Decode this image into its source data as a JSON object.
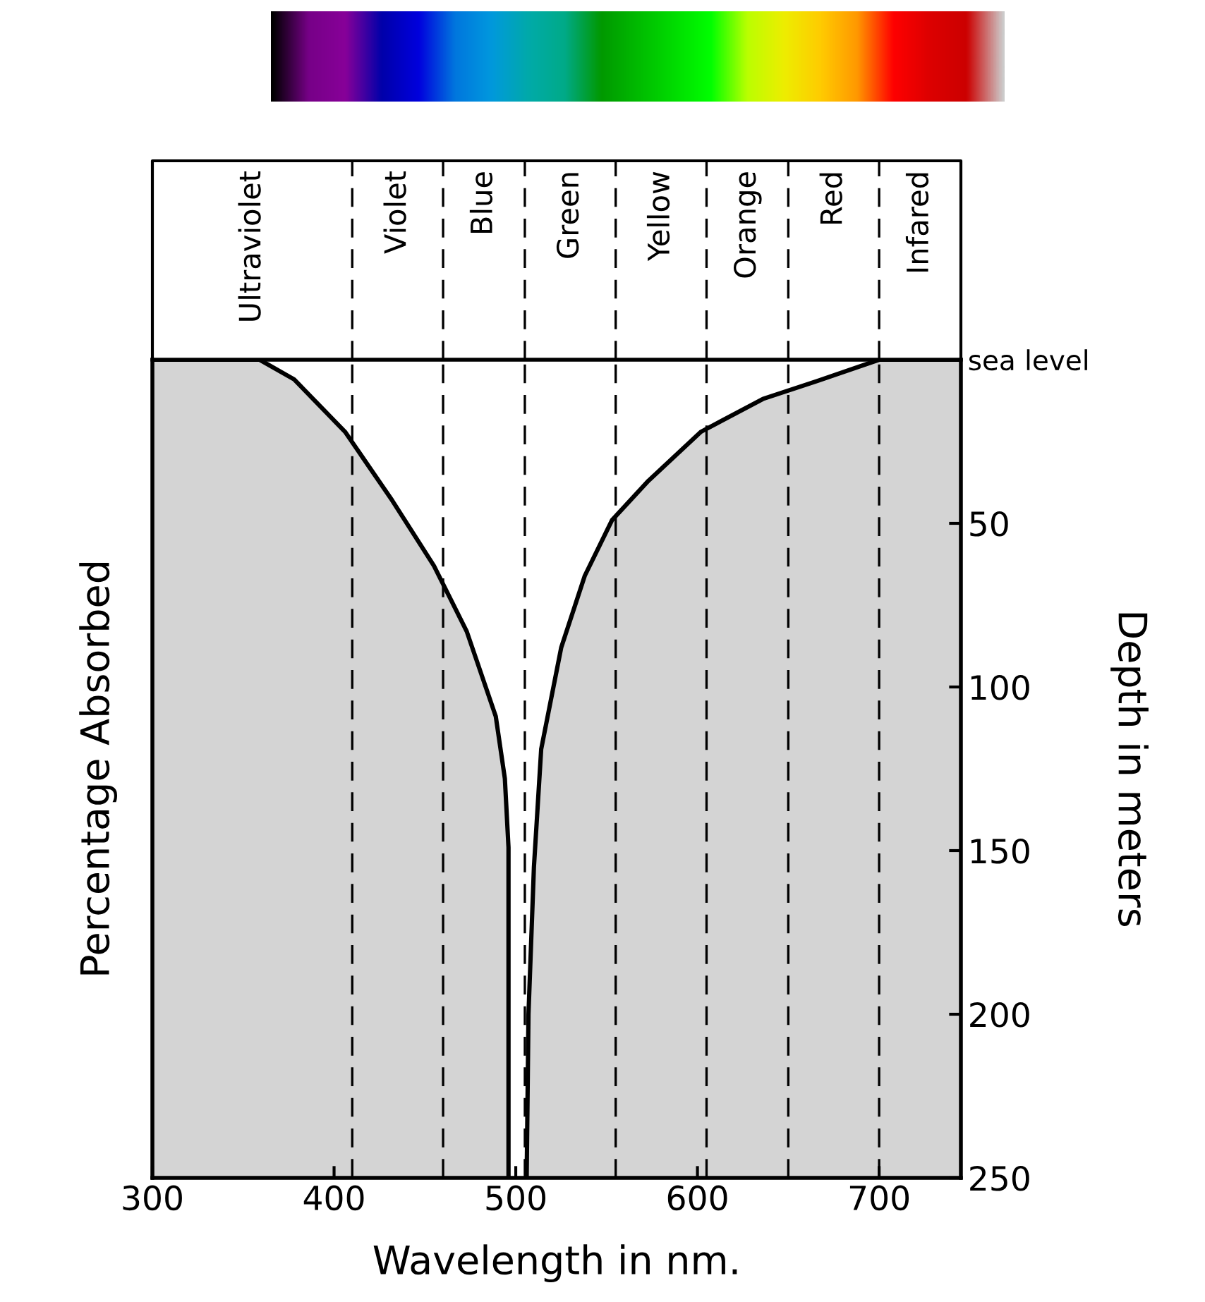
{
  "chart_data": {
    "type": "line",
    "xlabel": "Wavelength in nm.",
    "ylabel": "Percentage Absorbed",
    "y2label": "Depth in meters",
    "xlim": [
      300,
      745
    ],
    "xticks": [
      300,
      400,
      500,
      600,
      700
    ],
    "y2lim": [
      250,
      0
    ],
    "y2ticks": [
      {
        "value": 0,
        "label": "sea level"
      },
      50,
      100,
      150,
      200,
      250
    ],
    "series": [
      {
        "axis": "y2",
        "color": "#000000",
        "x": [
          300,
          359,
          378,
          406,
          432,
          455,
          473,
          489,
          494,
          496,
          496
        ],
        "values": [
          0,
          0,
          6,
          22,
          43,
          63,
          83,
          109,
          128,
          149,
          250
        ],
        "lower": [
          0,
          0,
          6,
          22,
          43,
          63,
          83,
          109,
          128,
          149,
          250
        ],
        "upper": [
          250,
          250,
          250,
          250,
          250,
          250,
          250,
          250,
          250,
          250,
          250
        ]
      },
      {
        "axis": "y2",
        "color": "#000000",
        "x": [
          506,
          507,
          510,
          514,
          525,
          538,
          553,
          573,
          602,
          636,
          666,
          700,
          745
        ],
        "values": [
          250,
          200,
          155,
          119,
          88,
          66,
          49,
          37,
          22,
          12,
          6.5,
          0,
          0
        ],
        "lower": [
          250,
          200,
          155,
          119,
          88,
          66,
          49,
          37,
          22,
          12,
          6.5,
          0,
          0
        ],
        "upper": [
          250,
          250,
          250,
          250,
          250,
          250,
          250,
          250,
          250,
          250,
          250,
          250,
          250
        ]
      }
    ],
    "ref_lines": [
      {
        "axis": "x",
        "value": 410,
        "line_style": "dashed"
      },
      {
        "axis": "x",
        "value": 460,
        "line_style": "dashed"
      },
      {
        "axis": "x",
        "value": 505,
        "line_style": "dashed"
      },
      {
        "axis": "x",
        "value": 555,
        "line_style": "dashed"
      },
      {
        "axis": "x",
        "value": 605,
        "line_style": "dashed"
      },
      {
        "axis": "x",
        "value": 650,
        "line_style": "dashed"
      },
      {
        "axis": "x",
        "value": 700,
        "line_style": "dashed"
      }
    ],
    "annotations": [
      "Ultraviolet",
      "Violet",
      "Blue",
      "Green",
      "Yellow",
      "Orange",
      "Red",
      "Infared"
    ],
    "grid": false,
    "legend": false
  }
}
